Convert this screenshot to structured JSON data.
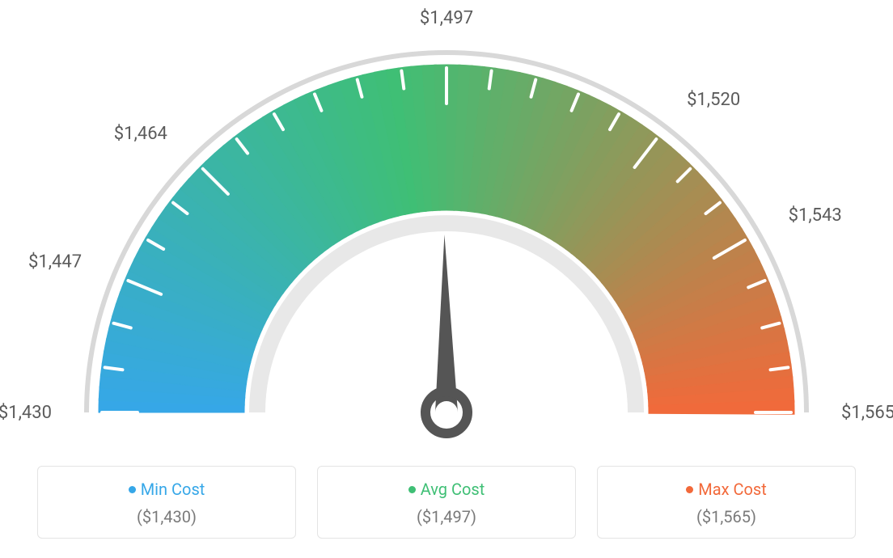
{
  "gauge": {
    "type": "gauge",
    "min_value": 1430,
    "max_value": 1565,
    "avg_value": 1497,
    "needle_value": 1497,
    "ticks": [
      {
        "value": 1430,
        "label": "$1,430",
        "angle": 180
      },
      {
        "value": 1447,
        "label": "$1,447",
        "angle": 157.5
      },
      {
        "value": 1464,
        "label": "$1,464",
        "angle": 135
      },
      {
        "value": 1497,
        "label": "$1,497",
        "angle": 90
      },
      {
        "value": 1520,
        "label": "$1,520",
        "angle": 52.5
      },
      {
        "value": 1543,
        "label": "$1,543",
        "angle": 30
      },
      {
        "value": 1565,
        "label": "$1,565",
        "angle": 0
      }
    ],
    "minor_tick_count": 24,
    "colors": {
      "start": "#36a7e8",
      "mid": "#3fbf75",
      "end": "#f2693a",
      "outer_ring": "#d8d8d8",
      "inner_ring": "#e8e8e8",
      "tick": "#ffffff",
      "label_text": "#5b5b5b",
      "needle": "#555555",
      "background": "#ffffff"
    },
    "geometry": {
      "outer_radius": 430,
      "inner_radius": 250,
      "outer_ring_width": 6,
      "inner_ring_width": 20,
      "tick_major_len": 48,
      "tick_minor_len": 26,
      "tick_stroke": 4,
      "label_fontsize": 22
    }
  },
  "cards": {
    "min": {
      "title": "Min Cost",
      "value": "($1,430)",
      "color": "#36a7e8"
    },
    "avg": {
      "title": "Avg Cost",
      "value": "($1,497)",
      "color": "#3fbf75"
    },
    "max": {
      "title": "Max Cost",
      "value": "($1,565)",
      "color": "#f2693a"
    }
  }
}
